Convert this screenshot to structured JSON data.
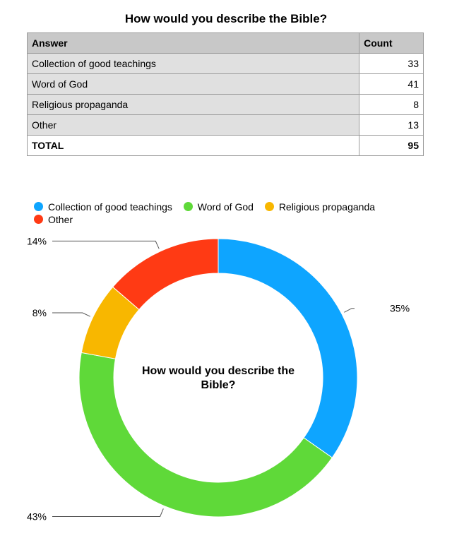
{
  "table": {
    "title": "How would you describe the Bible?",
    "headers": [
      "Answer",
      "Count"
    ],
    "rows": [
      {
        "answer": "Collection of good teachings",
        "count": "33"
      },
      {
        "answer": "Word of God",
        "count": "41"
      },
      {
        "answer": "Religious propaganda",
        "count": "8"
      },
      {
        "answer": "Other",
        "count": "13"
      }
    ],
    "total_label": "TOTAL",
    "total_value": "95"
  },
  "chart_data": {
    "type": "pie",
    "donut": true,
    "title": "How would you describe the Bible?",
    "legend_position": "top-left",
    "categories": [
      "Collection of good teachings",
      "Word of God",
      "Religious propaganda",
      "Other"
    ],
    "values": [
      33,
      41,
      8,
      13
    ],
    "data_labels": [
      "35%",
      "43%",
      "8%",
      "14%"
    ],
    "colors": [
      "#0ea5ff",
      "#5fd939",
      "#f8b700",
      "#ff3a14"
    ]
  }
}
